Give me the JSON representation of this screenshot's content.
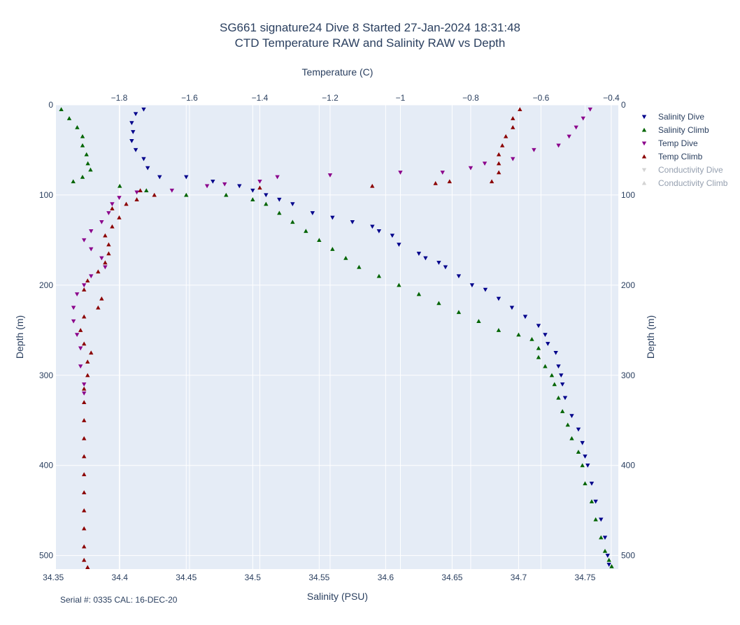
{
  "title": {
    "line1": "SG661 signature24 Dive 8 Started 27-Jan-2024 18:31:48",
    "line2": "CTD Temperature RAW and Salinity RAW vs Depth"
  },
  "footnote": "Serial #: 0335  CAL: 16-DEC-20",
  "chart_data": {
    "type": "scatter",
    "x_bottom": {
      "label": "Salinity (PSU)",
      "range": [
        34.352,
        34.775
      ],
      "ticks": [
        34.35,
        34.4,
        34.45,
        34.5,
        34.55,
        34.6,
        34.65,
        34.7,
        34.75
      ],
      "tick_labels": [
        "34.35",
        "34.4",
        "34.45",
        "34.5",
        "34.55",
        "34.6",
        "34.65",
        "34.7",
        "34.75"
      ]
    },
    "x_top": {
      "label": "Temperature (C)",
      "range": [
        -1.98,
        -0.38
      ],
      "ticks": [
        -1.8,
        -1.6,
        -1.4,
        -1.2,
        -1,
        -0.8,
        -0.6,
        -0.4
      ],
      "tick_labels": [
        "−1.8",
        "−1.6",
        "−1.4",
        "−1.2",
        "−1",
        "−0.8",
        "−0.6",
        "−0.4"
      ]
    },
    "y": {
      "label": "Depth (m)",
      "range": [
        0,
        515
      ],
      "reversed": true,
      "ticks": [
        0,
        100,
        200,
        300,
        400,
        500
      ],
      "tick_labels": [
        "0",
        "100",
        "200",
        "300",
        "400",
        "500"
      ]
    },
    "grid": true,
    "legend_position": "right",
    "series": [
      {
        "name": "Salinity Dive",
        "axis": "salinity",
        "marker": "triangle-down",
        "color": "#00008b",
        "visible": true,
        "points": [
          [
            34.418,
            5
          ],
          [
            34.412,
            10
          ],
          [
            34.409,
            20
          ],
          [
            34.41,
            30
          ],
          [
            34.409,
            40
          ],
          [
            34.412,
            50
          ],
          [
            34.418,
            60
          ],
          [
            34.421,
            70
          ],
          [
            34.43,
            80
          ],
          [
            34.45,
            80
          ],
          [
            34.47,
            85
          ],
          [
            34.49,
            90
          ],
          [
            34.5,
            95
          ],
          [
            34.51,
            100
          ],
          [
            34.52,
            105
          ],
          [
            34.53,
            110
          ],
          [
            34.545,
            120
          ],
          [
            34.56,
            125
          ],
          [
            34.575,
            130
          ],
          [
            34.59,
            135
          ],
          [
            34.595,
            140
          ],
          [
            34.605,
            145
          ],
          [
            34.61,
            155
          ],
          [
            34.625,
            165
          ],
          [
            34.63,
            170
          ],
          [
            34.64,
            175
          ],
          [
            34.645,
            180
          ],
          [
            34.655,
            190
          ],
          [
            34.665,
            200
          ],
          [
            34.675,
            205
          ],
          [
            34.685,
            215
          ],
          [
            34.695,
            225
          ],
          [
            34.705,
            235
          ],
          [
            34.715,
            245
          ],
          [
            34.72,
            255
          ],
          [
            34.722,
            265
          ],
          [
            34.728,
            275
          ],
          [
            34.73,
            290
          ],
          [
            34.732,
            300
          ],
          [
            34.733,
            310
          ],
          [
            34.735,
            325
          ],
          [
            34.74,
            345
          ],
          [
            34.745,
            360
          ],
          [
            34.748,
            375
          ],
          [
            34.75,
            390
          ],
          [
            34.752,
            400
          ],
          [
            34.755,
            420
          ],
          [
            34.758,
            440
          ],
          [
            34.762,
            460
          ],
          [
            34.765,
            480
          ],
          [
            34.767,
            500
          ],
          [
            34.768,
            510
          ]
        ]
      },
      {
        "name": "Salinity Climb",
        "axis": "salinity",
        "marker": "triangle-up",
        "color": "#006400",
        "visible": true,
        "points": [
          [
            34.356,
            5
          ],
          [
            34.362,
            15
          ],
          [
            34.368,
            25
          ],
          [
            34.372,
            35
          ],
          [
            34.372,
            45
          ],
          [
            34.375,
            55
          ],
          [
            34.376,
            65
          ],
          [
            34.378,
            72
          ],
          [
            34.372,
            80
          ],
          [
            34.365,
            85
          ],
          [
            34.4,
            90
          ],
          [
            34.42,
            95
          ],
          [
            34.45,
            100
          ],
          [
            34.48,
            100
          ],
          [
            34.5,
            105
          ],
          [
            34.51,
            110
          ],
          [
            34.52,
            120
          ],
          [
            34.53,
            130
          ],
          [
            34.54,
            140
          ],
          [
            34.55,
            150
          ],
          [
            34.56,
            160
          ],
          [
            34.57,
            170
          ],
          [
            34.58,
            180
          ],
          [
            34.595,
            190
          ],
          [
            34.61,
            200
          ],
          [
            34.625,
            210
          ],
          [
            34.64,
            220
          ],
          [
            34.655,
            230
          ],
          [
            34.67,
            240
          ],
          [
            34.685,
            250
          ],
          [
            34.7,
            255
          ],
          [
            34.71,
            260
          ],
          [
            34.715,
            270
          ],
          [
            34.715,
            280
          ],
          [
            34.72,
            290
          ],
          [
            34.725,
            300
          ],
          [
            34.727,
            310
          ],
          [
            34.73,
            325
          ],
          [
            34.733,
            340
          ],
          [
            34.737,
            355
          ],
          [
            34.74,
            370
          ],
          [
            34.745,
            385
          ],
          [
            34.748,
            400
          ],
          [
            34.75,
            420
          ],
          [
            34.755,
            440
          ],
          [
            34.758,
            460
          ],
          [
            34.762,
            480
          ],
          [
            34.765,
            495
          ],
          [
            34.768,
            505
          ],
          [
            34.77,
            512
          ]
        ]
      },
      {
        "name": "Temp Dive",
        "axis": "temperature",
        "marker": "triangle-down",
        "color": "#8b008b",
        "visible": true,
        "points": [
          [
            -0.46,
            5
          ],
          [
            -0.48,
            15
          ],
          [
            -0.5,
            25
          ],
          [
            -0.52,
            35
          ],
          [
            -0.55,
            45
          ],
          [
            -0.62,
            50
          ],
          [
            -0.68,
            60
          ],
          [
            -0.76,
            65
          ],
          [
            -0.8,
            70
          ],
          [
            -0.88,
            75
          ],
          [
            -1.0,
            75
          ],
          [
            -1.2,
            78
          ],
          [
            -1.35,
            80
          ],
          [
            -1.4,
            85
          ],
          [
            -1.5,
            88
          ],
          [
            -1.55,
            90
          ],
          [
            -1.65,
            95
          ],
          [
            -1.75,
            97
          ],
          [
            -1.8,
            103
          ],
          [
            -1.82,
            110
          ],
          [
            -1.83,
            120
          ],
          [
            -1.85,
            130
          ],
          [
            -1.88,
            140
          ],
          [
            -1.9,
            150
          ],
          [
            -1.88,
            160
          ],
          [
            -1.85,
            170
          ],
          [
            -1.84,
            180
          ],
          [
            -1.88,
            190
          ],
          [
            -1.9,
            200
          ],
          [
            -1.92,
            210
          ],
          [
            -1.93,
            225
          ],
          [
            -1.93,
            240
          ],
          [
            -1.92,
            255
          ],
          [
            -1.91,
            270
          ],
          [
            -1.91,
            290
          ],
          [
            -1.9,
            310
          ],
          [
            -1.9,
            320
          ]
        ]
      },
      {
        "name": "Temp Climb",
        "axis": "temperature",
        "marker": "triangle-up",
        "color": "#8b0000",
        "visible": true,
        "points": [
          [
            -0.66,
            5
          ],
          [
            -0.68,
            15
          ],
          [
            -0.68,
            25
          ],
          [
            -0.7,
            35
          ],
          [
            -0.71,
            45
          ],
          [
            -0.72,
            55
          ],
          [
            -0.72,
            65
          ],
          [
            -0.72,
            75
          ],
          [
            -0.74,
            85
          ],
          [
            -0.86,
            85
          ],
          [
            -0.9,
            87
          ],
          [
            -1.08,
            90
          ],
          [
            -1.4,
            92
          ],
          [
            -1.74,
            95
          ],
          [
            -1.7,
            100
          ],
          [
            -1.75,
            105
          ],
          [
            -1.78,
            110
          ],
          [
            -1.82,
            115
          ],
          [
            -1.8,
            125
          ],
          [
            -1.82,
            135
          ],
          [
            -1.84,
            145
          ],
          [
            -1.83,
            155
          ],
          [
            -1.83,
            165
          ],
          [
            -1.84,
            175
          ],
          [
            -1.86,
            185
          ],
          [
            -1.89,
            195
          ],
          [
            -1.9,
            205
          ],
          [
            -1.85,
            215
          ],
          [
            -1.86,
            225
          ],
          [
            -1.9,
            235
          ],
          [
            -1.91,
            250
          ],
          [
            -1.9,
            265
          ],
          [
            -1.88,
            275
          ],
          [
            -1.89,
            285
          ],
          [
            -1.89,
            300
          ],
          [
            -1.9,
            315
          ],
          [
            -1.9,
            330
          ],
          [
            -1.9,
            350
          ],
          [
            -1.9,
            370
          ],
          [
            -1.9,
            390
          ],
          [
            -1.9,
            410
          ],
          [
            -1.9,
            430
          ],
          [
            -1.9,
            450
          ],
          [
            -1.9,
            470
          ],
          [
            -1.9,
            490
          ],
          [
            -1.9,
            505
          ],
          [
            -1.89,
            513
          ]
        ]
      },
      {
        "name": "Conductivity Dive",
        "axis": "none",
        "marker": "triangle-down",
        "color": "#a9a9a9",
        "visible": false,
        "points": []
      },
      {
        "name": "Conductivity Climb",
        "axis": "none",
        "marker": "triangle-up",
        "color": "#a9a9a9",
        "visible": false,
        "points": []
      }
    ]
  }
}
